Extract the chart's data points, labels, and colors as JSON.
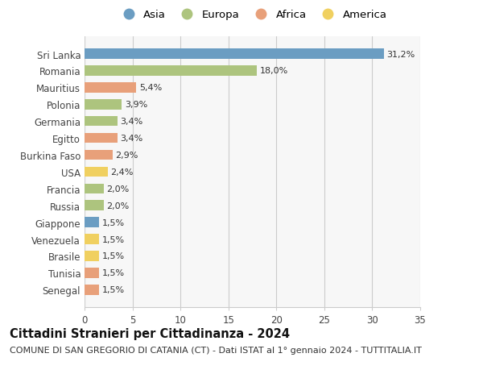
{
  "title": "Cittadini Stranieri per Cittadinanza - 2024",
  "subtitle": "COMUNE DI SAN GREGORIO DI CATANIA (CT) - Dati ISTAT al 1° gennaio 2024 - TUTTITALIA.IT",
  "categories": [
    "Sri Lanka",
    "Romania",
    "Mauritius",
    "Polonia",
    "Germania",
    "Egitto",
    "Burkina Faso",
    "USA",
    "Francia",
    "Russia",
    "Giappone",
    "Venezuela",
    "Brasile",
    "Tunisia",
    "Senegal"
  ],
  "values": [
    31.2,
    18.0,
    5.4,
    3.9,
    3.4,
    3.4,
    2.9,
    2.4,
    2.0,
    2.0,
    1.5,
    1.5,
    1.5,
    1.5,
    1.5
  ],
  "labels": [
    "31,2%",
    "18,0%",
    "5,4%",
    "3,9%",
    "3,4%",
    "3,4%",
    "2,9%",
    "2,4%",
    "2,0%",
    "2,0%",
    "1,5%",
    "1,5%",
    "1,5%",
    "1,5%",
    "1,5%"
  ],
  "continents": [
    "Asia",
    "Europa",
    "Africa",
    "Europa",
    "Europa",
    "Africa",
    "Africa",
    "America",
    "Europa",
    "Europa",
    "Asia",
    "America",
    "America",
    "Africa",
    "Africa"
  ],
  "continent_colors": {
    "Asia": "#6b9dc2",
    "Europa": "#adc47e",
    "Africa": "#e8a07a",
    "America": "#f0d060"
  },
  "xlim": [
    0,
    35
  ],
  "xticks": [
    0,
    5,
    10,
    15,
    20,
    25,
    30,
    35
  ],
  "background_color": "#ffffff",
  "plot_bg_color": "#f7f7f7",
  "grid_color": "#cccccc",
  "bar_height": 0.6,
  "title_fontsize": 10.5,
  "subtitle_fontsize": 8,
  "label_fontsize": 8,
  "tick_fontsize": 8.5,
  "legend_fontsize": 9.5
}
